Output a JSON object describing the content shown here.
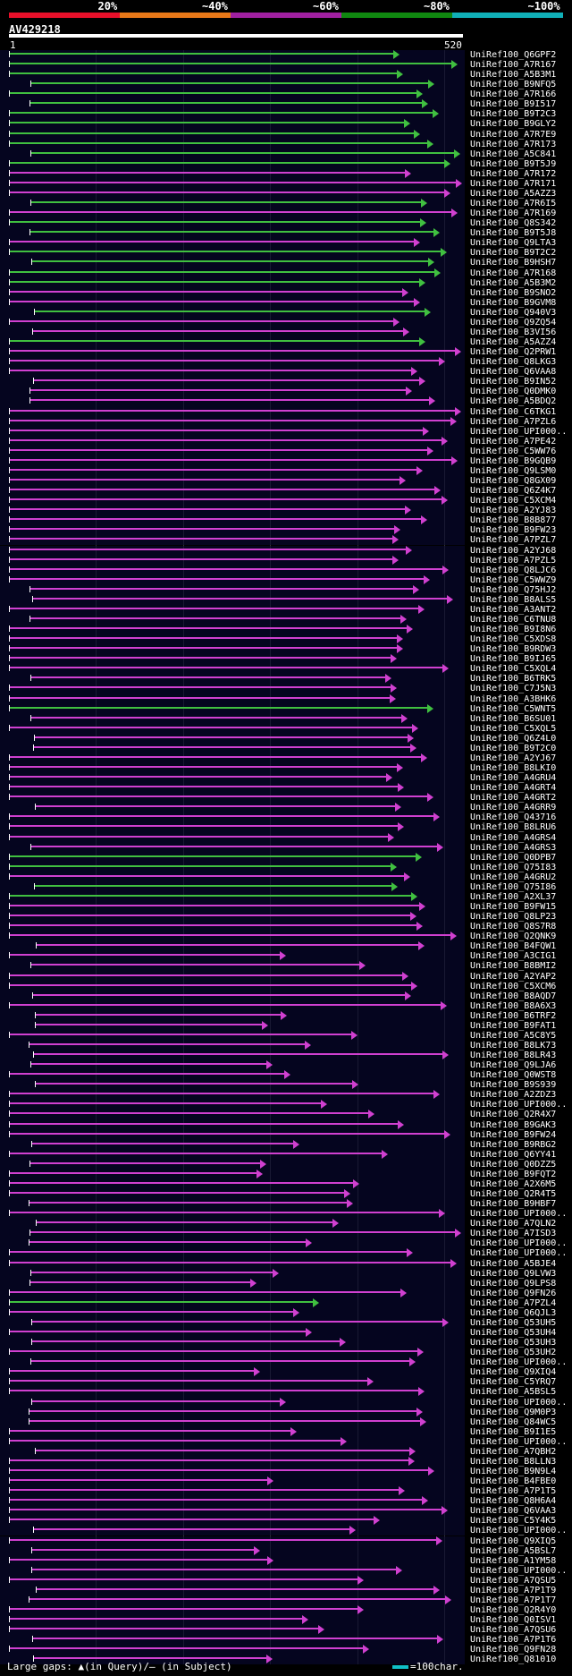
{
  "scale": {
    "labels": [
      "20%",
      "~40%",
      "~60%",
      "~80%",
      "~100%"
    ],
    "colors": [
      "#e8102a",
      "#e87818",
      "#a020a0",
      "#108810",
      "#10b0b8"
    ]
  },
  "query": {
    "id": "AV429218",
    "start_label": "1",
    "end_label": "520",
    "length": 520
  },
  "colors": {
    "magenta": "#d040d0",
    "green": "#40c040",
    "row_bg": "#080834",
    "grid": "#333333",
    "track": "#ffffff"
  },
  "hits": [
    {
      "name": "UniRef100_Q6GPF2",
      "c": "g"
    },
    {
      "name": "UniRef100_A7R167",
      "c": "g"
    },
    {
      "name": "UniRef100_A5B3M1",
      "c": "g"
    },
    {
      "name": "UniRef100_B9NFQ5",
      "c": "g"
    },
    {
      "name": "UniRef100_A7R166",
      "c": "g"
    },
    {
      "name": "UniRef100_B9I517",
      "c": "g"
    },
    {
      "name": "UniRef100_B9T2C3",
      "c": "g"
    },
    {
      "name": "UniRef100_B9GLY2",
      "c": "g"
    },
    {
      "name": "UniRef100_A7R7E9",
      "c": "g"
    },
    {
      "name": "UniRef100_A7R173",
      "c": "g"
    },
    {
      "name": "UniRef100_A5C841",
      "c": "g"
    },
    {
      "name": "UniRef100_B9T5J9",
      "c": "g"
    },
    {
      "name": "UniRef100_A7R172",
      "c": "m"
    },
    {
      "name": "UniRef100_A7R171",
      "c": "m"
    },
    {
      "name": "UniRef100_A5AZZ3",
      "c": "m"
    },
    {
      "name": "UniRef100_A7R6I5",
      "c": "g"
    },
    {
      "name": "UniRef100_A7R169",
      "c": "m"
    },
    {
      "name": "UniRef100_Q8S342",
      "c": "g"
    },
    {
      "name": "UniRef100_B9T5J8",
      "c": "g"
    },
    {
      "name": "UniRef100_Q9LTA3",
      "c": "m"
    },
    {
      "name": "UniRef100_B9T2C2",
      "c": "g"
    },
    {
      "name": "UniRef100_B9HSH7",
      "c": "g"
    },
    {
      "name": "UniRef100_A7R168",
      "c": "g"
    },
    {
      "name": "UniRef100_A5B3M2",
      "c": "g"
    },
    {
      "name": "UniRef100_B9SNO2",
      "c": "m"
    },
    {
      "name": "UniRef100_B9GVM8",
      "c": "m"
    },
    {
      "name": "UniRef100_Q940V3",
      "c": "g"
    },
    {
      "name": "UniRef100_Q9ZQ54",
      "c": "m"
    },
    {
      "name": "UniRef100_B3VI56",
      "c": "m"
    },
    {
      "name": "UniRef100_A5AZZ4",
      "c": "g"
    },
    {
      "name": "UniRef100_Q2PRW1",
      "c": "m"
    },
    {
      "name": "UniRef100_Q8LKG3",
      "c": "m"
    },
    {
      "name": "UniRef100_Q6VAA8",
      "c": "m"
    },
    {
      "name": "UniRef100_B9IN52",
      "c": "m"
    },
    {
      "name": "UniRef100_Q0DMK0",
      "c": "m"
    },
    {
      "name": "UniRef100_A5BDQ2",
      "c": "m"
    },
    {
      "name": "UniRef100_C6TKG1",
      "c": "m"
    },
    {
      "name": "UniRef100_A7PZL6",
      "c": "m"
    },
    {
      "name": "UniRef100_UPI000..",
      "c": "m"
    },
    {
      "name": "UniRef100_A7PE42",
      "c": "m"
    },
    {
      "name": "UniRef100_C5WW76",
      "c": "m"
    },
    {
      "name": "UniRef100_B9GQB9",
      "c": "m"
    },
    {
      "name": "UniRef100_Q9LSM0",
      "c": "m"
    },
    {
      "name": "UniRef100_Q8GX09",
      "c": "m"
    },
    {
      "name": "UniRef100_Q6Z4K7",
      "c": "m"
    },
    {
      "name": "UniRef100_C5XCM4",
      "c": "m"
    },
    {
      "name": "UniRef100_A2YJ83",
      "c": "m"
    },
    {
      "name": "UniRef100_B8B877",
      "c": "m"
    },
    {
      "name": "UniRef100_B9FW23",
      "c": "m"
    },
    {
      "name": "UniRef100_A7PZL7",
      "c": "m"
    },
    {
      "name": "UniRef100_A2YJ68",
      "c": "m"
    },
    {
      "name": "UniRef100_A7PZL5",
      "c": "m"
    },
    {
      "name": "UniRef100_Q8LJC6",
      "c": "m"
    },
    {
      "name": "UniRef100_C5WWZ9",
      "c": "m"
    },
    {
      "name": "UniRef100_Q75HJ2",
      "c": "m"
    },
    {
      "name": "UniRef100_B8ALS5",
      "c": "m"
    },
    {
      "name": "UniRef100_A3ANT2",
      "c": "m"
    },
    {
      "name": "UniRef100_C6TNU8",
      "c": "m"
    },
    {
      "name": "UniRef100_B9I8N6",
      "c": "m"
    },
    {
      "name": "UniRef100_C5XDS8",
      "c": "m"
    },
    {
      "name": "UniRef100_B9RDW3",
      "c": "m"
    },
    {
      "name": "UniRef100_B9IJ65",
      "c": "m"
    },
    {
      "name": "UniRef100_C5XQL4",
      "c": "m"
    },
    {
      "name": "UniRef100_B6TRK5",
      "c": "m"
    },
    {
      "name": "UniRef100_C7J5N3",
      "c": "m"
    },
    {
      "name": "UniRef100_A3BHK6",
      "c": "m"
    },
    {
      "name": "UniRef100_C5WNT5",
      "c": "g"
    },
    {
      "name": "UniRef100_B6SU01",
      "c": "m"
    },
    {
      "name": "UniRef100_C5XQL5",
      "c": "m"
    },
    {
      "name": "UniRef100_Q6Z4L0",
      "c": "m"
    },
    {
      "name": "UniRef100_B9T2C0",
      "c": "m"
    },
    {
      "name": "UniRef100_A2YJ67",
      "c": "m"
    },
    {
      "name": "UniRef100_B8LKI0",
      "c": "m"
    },
    {
      "name": "UniRef100_A4GRU4",
      "c": "m"
    },
    {
      "name": "UniRef100_A4GRT4",
      "c": "m"
    },
    {
      "name": "UniRef100_A4GRT2",
      "c": "m"
    },
    {
      "name": "UniRef100_A4GRR9",
      "c": "m"
    },
    {
      "name": "UniRef100_Q43716",
      "c": "m"
    },
    {
      "name": "UniRef100_B8LRU6",
      "c": "m"
    },
    {
      "name": "UniRef100_A4GRS4",
      "c": "m"
    },
    {
      "name": "UniRef100_A4GRS3",
      "c": "m"
    },
    {
      "name": "UniRef100_Q0DPB7",
      "c": "g"
    },
    {
      "name": "UniRef100_Q75I83",
      "c": "g"
    },
    {
      "name": "UniRef100_A4GRU2",
      "c": "m"
    },
    {
      "name": "UniRef100_Q75I86",
      "c": "g"
    },
    {
      "name": "UniRef100_A2XL37",
      "c": "g"
    },
    {
      "name": "UniRef100_B9FW15",
      "c": "m"
    },
    {
      "name": "UniRef100_Q8LP23",
      "c": "m"
    },
    {
      "name": "UniRef100_Q8S7R8",
      "c": "m"
    },
    {
      "name": "UniRef100_Q2QNK9",
      "c": "m"
    },
    {
      "name": "UniRef100_B4FQW1",
      "c": "m"
    },
    {
      "name": "UniRef100_A3CIG1",
      "c": "m"
    },
    {
      "name": "UniRef100_B8BMI2",
      "c": "m"
    },
    {
      "name": "UniRef100_A2YAP2",
      "c": "m"
    },
    {
      "name": "UniRef100_C5XCM6",
      "c": "m"
    },
    {
      "name": "UniRef100_B8AQD7",
      "c": "m"
    },
    {
      "name": "UniRef100_B8A6X3",
      "c": "m"
    },
    {
      "name": "UniRef100_B6TRF2",
      "c": "m"
    },
    {
      "name": "UniRef100_B9FAT1",
      "c": "m"
    },
    {
      "name": "UniRef100_A5C8Y5",
      "c": "m"
    },
    {
      "name": "UniRef100_B8LK73",
      "c": "m"
    },
    {
      "name": "UniRef100_B8LR43",
      "c": "m"
    },
    {
      "name": "UniRef100_Q9LJA6",
      "c": "m"
    },
    {
      "name": "UniRef100_Q0WST8",
      "c": "m"
    },
    {
      "name": "UniRef100_B9S939",
      "c": "m"
    },
    {
      "name": "UniRef100_A2ZDZ3",
      "c": "m"
    },
    {
      "name": "UniRef100_UPI000..",
      "c": "m"
    },
    {
      "name": "UniRef100_Q2R4X7",
      "c": "m"
    },
    {
      "name": "UniRef100_B9GAK3",
      "c": "m"
    },
    {
      "name": "UniRef100_B9FW24",
      "c": "m"
    },
    {
      "name": "UniRef100_B9RBG2",
      "c": "m"
    },
    {
      "name": "UniRef100_Q6YY41",
      "c": "m"
    },
    {
      "name": "UniRef100_Q0DZZ5",
      "c": "m"
    },
    {
      "name": "UniRef100_B9FQT2",
      "c": "m"
    },
    {
      "name": "UniRef100_A2X6M5",
      "c": "m"
    },
    {
      "name": "UniRef100_Q2R4T5",
      "c": "m"
    },
    {
      "name": "UniRef100_B9HBF7",
      "c": "m"
    },
    {
      "name": "UniRef100_UPI000..",
      "c": "m"
    },
    {
      "name": "UniRef100_A7QLN2",
      "c": "m"
    },
    {
      "name": "UniRef100_A7ISD3",
      "c": "m"
    },
    {
      "name": "UniRef100_UPI000..",
      "c": "m"
    },
    {
      "name": "UniRef100_UPI000..",
      "c": "m"
    },
    {
      "name": "UniRef100_A5BJE4",
      "c": "m"
    },
    {
      "name": "UniRef100_Q9LVW3",
      "c": "m"
    },
    {
      "name": "UniRef100_Q9LPS8",
      "c": "m"
    },
    {
      "name": "UniRef100_Q9FN26",
      "c": "m"
    },
    {
      "name": "UniRef100_A7PZL4",
      "c": "g"
    },
    {
      "name": "UniRef100_Q6QJL3",
      "c": "m"
    },
    {
      "name": "UniRef100_Q53UH5",
      "c": "m"
    },
    {
      "name": "UniRef100_Q53UH4",
      "c": "m"
    },
    {
      "name": "UniRef100_Q53UH3",
      "c": "m"
    },
    {
      "name": "UniRef100_Q53UH2",
      "c": "m"
    },
    {
      "name": "UniRef100_UPI000..",
      "c": "m"
    },
    {
      "name": "UniRef100_Q9XIQ4",
      "c": "m"
    },
    {
      "name": "UniRef100_C5YRQ7",
      "c": "m"
    },
    {
      "name": "UniRef100_A5BSL5",
      "c": "m"
    },
    {
      "name": "UniRef100_UPI000..",
      "c": "m"
    },
    {
      "name": "UniRef100_Q9M0P3",
      "c": "m"
    },
    {
      "name": "UniRef100_Q84WC5",
      "c": "m"
    },
    {
      "name": "UniRef100_B9I1E5",
      "c": "m"
    },
    {
      "name": "UniRef100_UPI000..",
      "c": "m"
    },
    {
      "name": "UniRef100_A7QBH2",
      "c": "m"
    },
    {
      "name": "UniRef100_B8LLN3",
      "c": "m"
    },
    {
      "name": "UniRef100_B9N9L4",
      "c": "m"
    },
    {
      "name": "UniRef100_B4FBE0",
      "c": "m"
    },
    {
      "name": "UniRef100_A7P1T5",
      "c": "m"
    },
    {
      "name": "UniRef100_Q8H6A4",
      "c": "m"
    },
    {
      "name": "UniRef100_Q6VAA3",
      "c": "m"
    },
    {
      "name": "UniRef100_C5Y4K5",
      "c": "m"
    },
    {
      "name": "UniRef100_UPI000..",
      "c": "m"
    },
    {
      "name": "UniRef100_Q9XIQ5",
      "c": "m"
    },
    {
      "name": "UniRef100_A5BSL7",
      "c": "m"
    },
    {
      "name": "UniRef100_A1YM58",
      "c": "m"
    },
    {
      "name": "UniRef100_UPI000..",
      "c": "m"
    },
    {
      "name": "UniRef100_A7QSU5",
      "c": "m"
    },
    {
      "name": "UniRef100_A7P1T9",
      "c": "m"
    },
    {
      "name": "UniRef100_A7P1T7",
      "c": "m"
    },
    {
      "name": "UniRef100_Q2R4Y0",
      "c": "m"
    },
    {
      "name": "UniRef100_Q0ISV1",
      "c": "m"
    },
    {
      "name": "UniRef100_A7QSU6",
      "c": "m"
    },
    {
      "name": "UniRef100_A7P1T6",
      "c": "m"
    },
    {
      "name": "UniRef100_Q9FN28",
      "c": "m"
    },
    {
      "name": "UniRef100_Q81010",
      "c": "m"
    }
  ],
  "legend": {
    "gaps_text": "Large gaps: ▲(in Query)/– (in Subject)",
    "scale_text": "=100char."
  }
}
